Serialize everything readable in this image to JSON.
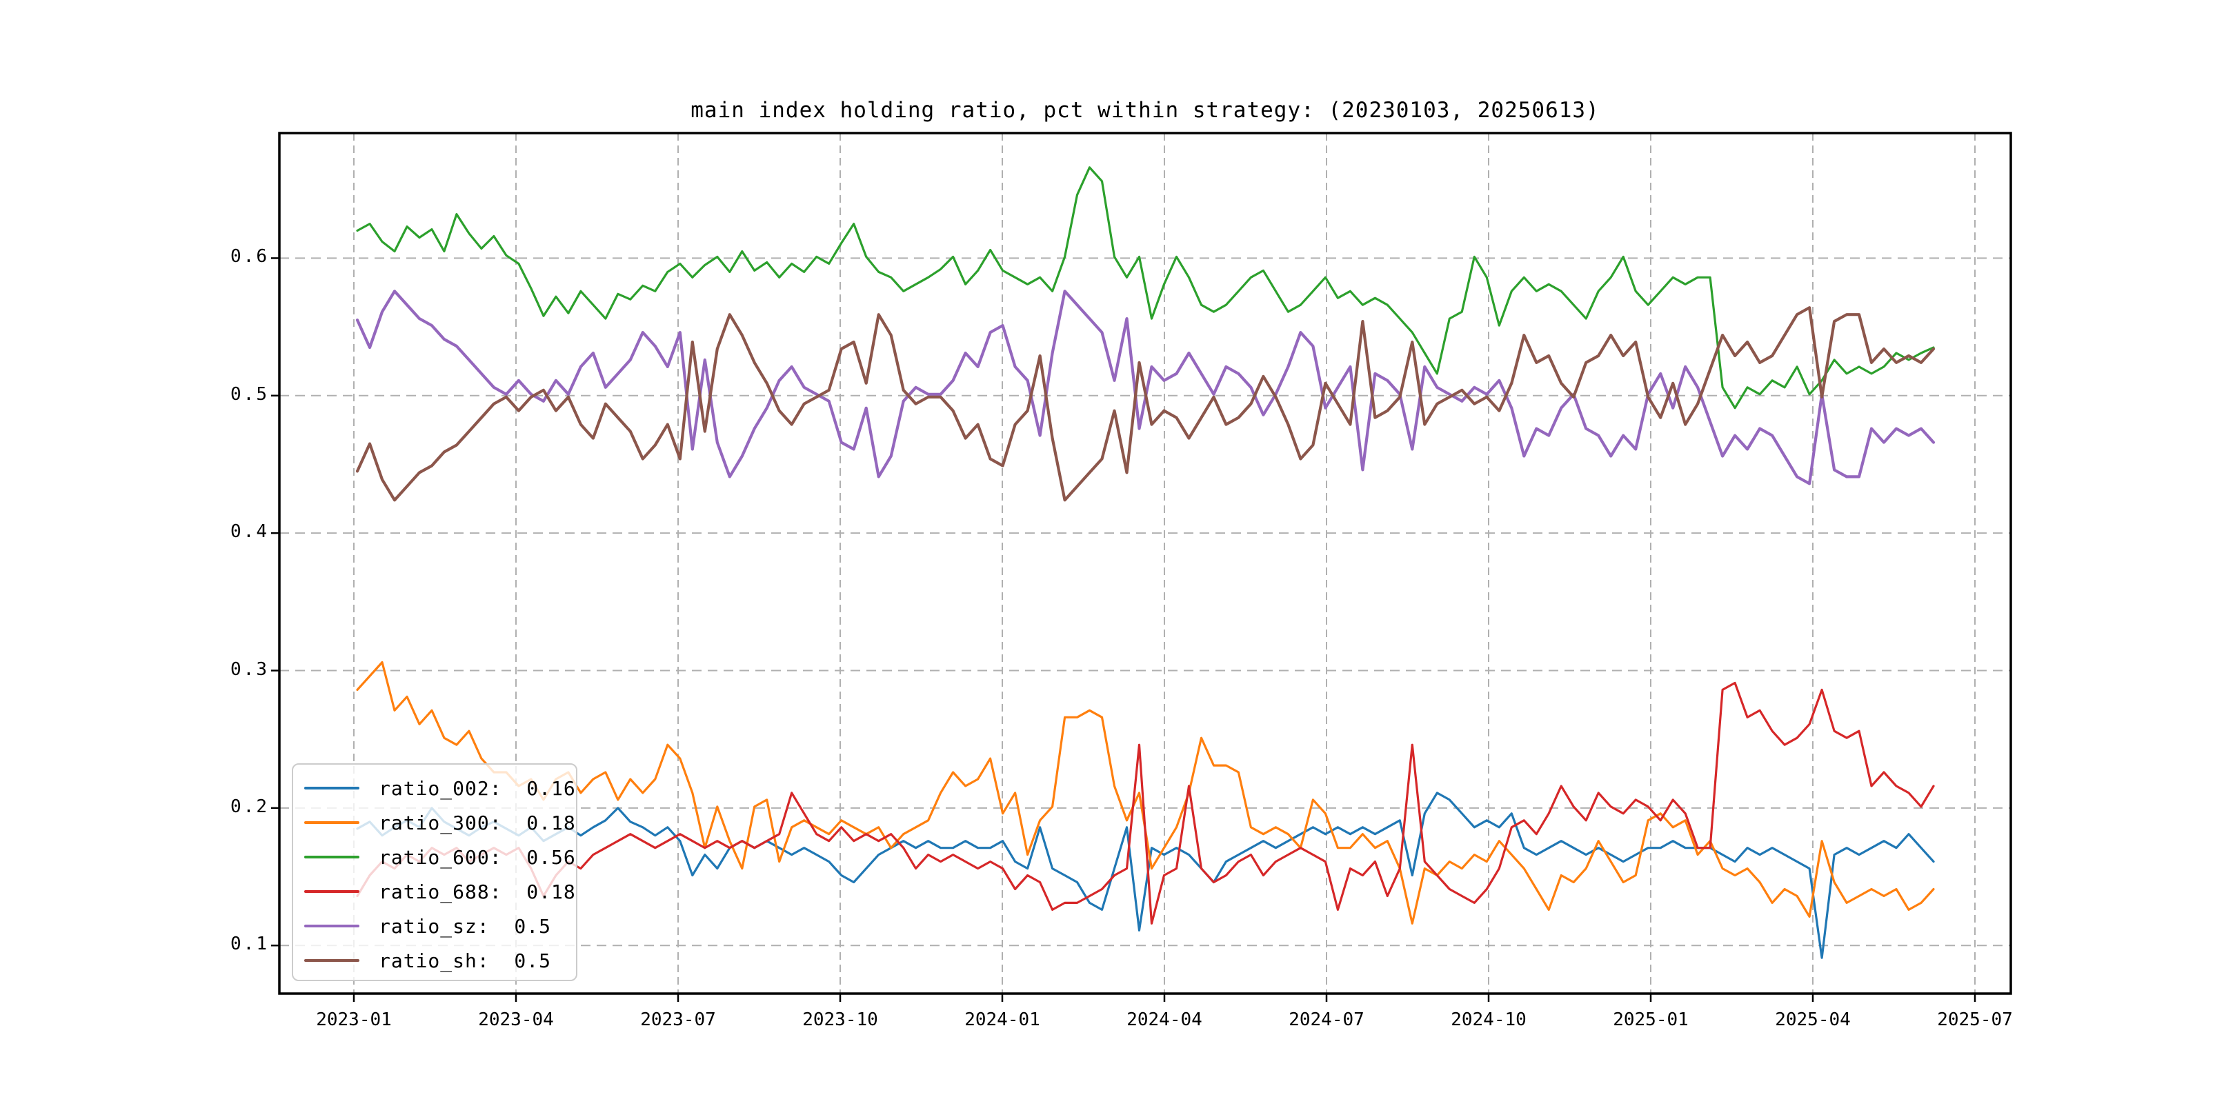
{
  "chart_data": {
    "type": "line",
    "title": "main index holding ratio, pct within strategy: (20230103, 20250613)",
    "x_tick_labels": [
      "2023-01",
      "2023-04",
      "2023-07",
      "2023-10",
      "2024-01",
      "2024-04",
      "2024-07",
      "2024-10",
      "2025-01",
      "2025-04",
      "2025-07"
    ],
    "y_tick_labels": [
      "0.1",
      "0.2",
      "0.3",
      "0.4",
      "0.5",
      "0.6"
    ],
    "ylim": [
      0.065,
      0.691
    ],
    "x_range": [
      "20230103",
      "20250613"
    ],
    "grid": true,
    "grid_color": "#b0b0b0",
    "legend_position": "lower-left",
    "series": [
      {
        "name": "ratio_002",
        "legend_label": "ratio_002:  0.16",
        "color": "#1f77b4",
        "lw": 3.2,
        "values": [
          0.185,
          0.19,
          0.18,
          0.186,
          0.191,
          0.186,
          0.2,
          0.19,
          0.185,
          0.18,
          0.186,
          0.19,
          0.185,
          0.18,
          0.186,
          0.176,
          0.181,
          0.186,
          0.18,
          0.186,
          0.191,
          0.2,
          0.19,
          0.186,
          0.18,
          0.186,
          0.176,
          0.151,
          0.166,
          0.156,
          0.171,
          0.176,
          0.171,
          0.176,
          0.171,
          0.166,
          0.171,
          0.166,
          0.161,
          0.151,
          0.146,
          0.156,
          0.166,
          0.171,
          0.176,
          0.171,
          0.176,
          0.171,
          0.171,
          0.176,
          0.171,
          0.171,
          0.176,
          0.161,
          0.156,
          0.186,
          0.156,
          0.151,
          0.146,
          0.131,
          0.126,
          0.156,
          0.186,
          0.111,
          0.171,
          0.166,
          0.171,
          0.166,
          0.156,
          0.146,
          0.161,
          0.166,
          0.171,
          0.176,
          0.171,
          0.176,
          0.181,
          0.186,
          0.181,
          0.186,
          0.181,
          0.186,
          0.181,
          0.186,
          0.191,
          0.151,
          0.196,
          0.211,
          0.206,
          0.196,
          0.186,
          0.191,
          0.186,
          0.196,
          0.171,
          0.166,
          0.171,
          0.176,
          0.171,
          0.166,
          0.171,
          0.166,
          0.161,
          0.166,
          0.171,
          0.171,
          0.176,
          0.171,
          0.171,
          0.171,
          0.166,
          0.161,
          0.171,
          0.166,
          0.171,
          0.166,
          0.161,
          0.156,
          0.091,
          0.166,
          0.171,
          0.166,
          0.171,
          0.176,
          0.171,
          0.181,
          0.171,
          0.161
        ]
      },
      {
        "name": "ratio_300",
        "legend_label": "ratio_300:  0.18",
        "color": "#ff7f0e",
        "lw": 3.2,
        "values": [
          0.286,
          0.296,
          0.306,
          0.271,
          0.281,
          0.261,
          0.271,
          0.251,
          0.246,
          0.256,
          0.236,
          0.226,
          0.226,
          0.216,
          0.221,
          0.206,
          0.221,
          0.226,
          0.211,
          0.221,
          0.226,
          0.206,
          0.221,
          0.211,
          0.221,
          0.246,
          0.236,
          0.211,
          0.171,
          0.201,
          0.176,
          0.156,
          0.201,
          0.206,
          0.161,
          0.186,
          0.191,
          0.186,
          0.181,
          0.191,
          0.186,
          0.181,
          0.186,
          0.171,
          0.181,
          0.186,
          0.191,
          0.211,
          0.226,
          0.216,
          0.221,
          0.236,
          0.196,
          0.211,
          0.166,
          0.191,
          0.201,
          0.266,
          0.266,
          0.271,
          0.266,
          0.216,
          0.191,
          0.211,
          0.156,
          0.171,
          0.186,
          0.211,
          0.251,
          0.231,
          0.231,
          0.226,
          0.186,
          0.181,
          0.186,
          0.181,
          0.171,
          0.206,
          0.196,
          0.171,
          0.171,
          0.181,
          0.171,
          0.176,
          0.156,
          0.116,
          0.156,
          0.151,
          0.161,
          0.156,
          0.166,
          0.161,
          0.176,
          0.166,
          0.156,
          0.141,
          0.126,
          0.151,
          0.146,
          0.156,
          0.176,
          0.161,
          0.146,
          0.151,
          0.191,
          0.196,
          0.186,
          0.191,
          0.166,
          0.176,
          0.156,
          0.151,
          0.156,
          0.146,
          0.131,
          0.141,
          0.136,
          0.121,
          0.176,
          0.146,
          0.131,
          0.136,
          0.141,
          0.136,
          0.141,
          0.126,
          0.131,
          0.141
        ]
      },
      {
        "name": "ratio_600",
        "legend_label": "ratio_600:  0.56",
        "color": "#2ca02c",
        "lw": 3.2,
        "values": [
          0.62,
          0.625,
          0.612,
          0.605,
          0.623,
          0.615,
          0.621,
          0.605,
          0.632,
          0.618,
          0.607,
          0.616,
          0.602,
          0.596,
          0.578,
          0.558,
          0.572,
          0.56,
          0.576,
          0.566,
          0.556,
          0.574,
          0.57,
          0.58,
          0.576,
          0.59,
          0.596,
          0.586,
          0.595,
          0.601,
          0.59,
          0.605,
          0.591,
          0.597,
          0.586,
          0.596,
          0.59,
          0.601,
          0.596,
          0.611,
          0.625,
          0.601,
          0.59,
          0.586,
          0.576,
          0.581,
          0.586,
          0.592,
          0.601,
          0.581,
          0.591,
          0.606,
          0.591,
          0.586,
          0.581,
          0.586,
          0.576,
          0.601,
          0.646,
          0.666,
          0.656,
          0.601,
          0.586,
          0.601,
          0.556,
          0.581,
          0.601,
          0.586,
          0.566,
          0.561,
          0.566,
          0.576,
          0.586,
          0.591,
          0.576,
          0.561,
          0.566,
          0.576,
          0.586,
          0.571,
          0.576,
          0.566,
          0.571,
          0.566,
          0.556,
          0.546,
          0.531,
          0.516,
          0.556,
          0.561,
          0.601,
          0.586,
          0.551,
          0.576,
          0.586,
          0.576,
          0.581,
          0.576,
          0.566,
          0.556,
          0.576,
          0.586,
          0.601,
          0.576,
          0.566,
          0.576,
          0.586,
          0.581,
          0.586,
          0.586,
          0.506,
          0.491,
          0.506,
          0.501,
          0.511,
          0.506,
          0.521,
          0.501,
          0.511,
          0.526,
          0.516,
          0.521,
          0.516,
          0.521,
          0.531,
          0.526,
          0.531,
          0.535
        ]
      },
      {
        "name": "ratio_688",
        "legend_label": "ratio_688:  0.18",
        "color": "#d62728",
        "lw": 3.2,
        "values": [
          0.136,
          0.151,
          0.161,
          0.156,
          0.166,
          0.161,
          0.171,
          0.166,
          0.171,
          0.161,
          0.166,
          0.171,
          0.166,
          0.171,
          0.156,
          0.136,
          0.151,
          0.161,
          0.156,
          0.166,
          0.171,
          0.176,
          0.181,
          0.176,
          0.171,
          0.176,
          0.181,
          0.176,
          0.171,
          0.176,
          0.171,
          0.176,
          0.171,
          0.176,
          0.181,
          0.211,
          0.196,
          0.181,
          0.176,
          0.186,
          0.176,
          0.181,
          0.176,
          0.181,
          0.171,
          0.156,
          0.166,
          0.161,
          0.166,
          0.161,
          0.156,
          0.161,
          0.156,
          0.141,
          0.151,
          0.146,
          0.126,
          0.131,
          0.131,
          0.136,
          0.141,
          0.151,
          0.156,
          0.246,
          0.116,
          0.151,
          0.156,
          0.216,
          0.156,
          0.146,
          0.151,
          0.161,
          0.166,
          0.151,
          0.161,
          0.166,
          0.171,
          0.166,
          0.161,
          0.126,
          0.156,
          0.151,
          0.161,
          0.136,
          0.156,
          0.246,
          0.161,
          0.151,
          0.141,
          0.136,
          0.131,
          0.141,
          0.156,
          0.186,
          0.191,
          0.181,
          0.196,
          0.216,
          0.201,
          0.191,
          0.211,
          0.201,
          0.196,
          0.206,
          0.201,
          0.191,
          0.206,
          0.196,
          0.171,
          0.171,
          0.286,
          0.291,
          0.266,
          0.271,
          0.256,
          0.246,
          0.251,
          0.261,
          0.286,
          0.256,
          0.251,
          0.256,
          0.216,
          0.226,
          0.216,
          0.211,
          0.201,
          0.216
        ]
      },
      {
        "name": "ratio_sz",
        "legend_label": "ratio_sz:  0.5",
        "color": "#9467bd",
        "lw": 4.2,
        "values": [
          0.555,
          0.535,
          0.561,
          0.576,
          0.566,
          0.556,
          0.551,
          0.541,
          0.536,
          0.526,
          0.516,
          0.506,
          0.501,
          0.511,
          0.501,
          0.496,
          0.511,
          0.501,
          0.521,
          0.531,
          0.506,
          0.516,
          0.526,
          0.546,
          0.536,
          0.521,
          0.546,
          0.461,
          0.526,
          0.466,
          0.441,
          0.456,
          0.476,
          0.491,
          0.511,
          0.521,
          0.506,
          0.501,
          0.496,
          0.466,
          0.461,
          0.491,
          0.441,
          0.456,
          0.496,
          0.506,
          0.501,
          0.501,
          0.511,
          0.531,
          0.521,
          0.546,
          0.551,
          0.521,
          0.511,
          0.471,
          0.531,
          0.576,
          0.566,
          0.556,
          0.546,
          0.511,
          0.556,
          0.476,
          0.521,
          0.511,
          0.516,
          0.531,
          0.516,
          0.501,
          0.521,
          0.516,
          0.506,
          0.486,
          0.501,
          0.521,
          0.546,
          0.536,
          0.491,
          0.506,
          0.521,
          0.446,
          0.516,
          0.511,
          0.501,
          0.461,
          0.521,
          0.506,
          0.501,
          0.496,
          0.506,
          0.501,
          0.511,
          0.491,
          0.456,
          0.476,
          0.471,
          0.491,
          0.501,
          0.476,
          0.471,
          0.456,
          0.471,
          0.461,
          0.501,
          0.516,
          0.491,
          0.521,
          0.506,
          0.481,
          0.456,
          0.471,
          0.461,
          0.476,
          0.471,
          0.456,
          0.441,
          0.436,
          0.501,
          0.446,
          0.441,
          0.441,
          0.476,
          0.466,
          0.476,
          0.471,
          0.476,
          0.466
        ]
      },
      {
        "name": "ratio_sh",
        "legend_label": "ratio_sh:  0.5",
        "color": "#8c564b",
        "lw": 4.2,
        "values": [
          0.445,
          0.465,
          0.439,
          0.424,
          0.434,
          0.444,
          0.449,
          0.459,
          0.464,
          0.474,
          0.484,
          0.494,
          0.499,
          0.489,
          0.499,
          0.504,
          0.489,
          0.499,
          0.479,
          0.469,
          0.494,
          0.484,
          0.474,
          0.454,
          0.464,
          0.479,
          0.454,
          0.539,
          0.474,
          0.534,
          0.559,
          0.544,
          0.524,
          0.509,
          0.489,
          0.479,
          0.494,
          0.499,
          0.504,
          0.534,
          0.539,
          0.509,
          0.559,
          0.544,
          0.504,
          0.494,
          0.499,
          0.499,
          0.489,
          0.469,
          0.479,
          0.454,
          0.449,
          0.479,
          0.489,
          0.529,
          0.469,
          0.424,
          0.434,
          0.444,
          0.454,
          0.489,
          0.444,
          0.524,
          0.479,
          0.489,
          0.484,
          0.469,
          0.484,
          0.499,
          0.479,
          0.484,
          0.494,
          0.514,
          0.499,
          0.479,
          0.454,
          0.464,
          0.509,
          0.494,
          0.479,
          0.554,
          0.484,
          0.489,
          0.499,
          0.539,
          0.479,
          0.494,
          0.499,
          0.504,
          0.494,
          0.499,
          0.489,
          0.509,
          0.544,
          0.524,
          0.529,
          0.509,
          0.499,
          0.524,
          0.529,
          0.544,
          0.529,
          0.539,
          0.499,
          0.484,
          0.509,
          0.479,
          0.494,
          0.519,
          0.544,
          0.529,
          0.539,
          0.524,
          0.529,
          0.544,
          0.559,
          0.564,
          0.499,
          0.554,
          0.559,
          0.559,
          0.524,
          0.534,
          0.524,
          0.529,
          0.524,
          0.534
        ]
      }
    ]
  }
}
